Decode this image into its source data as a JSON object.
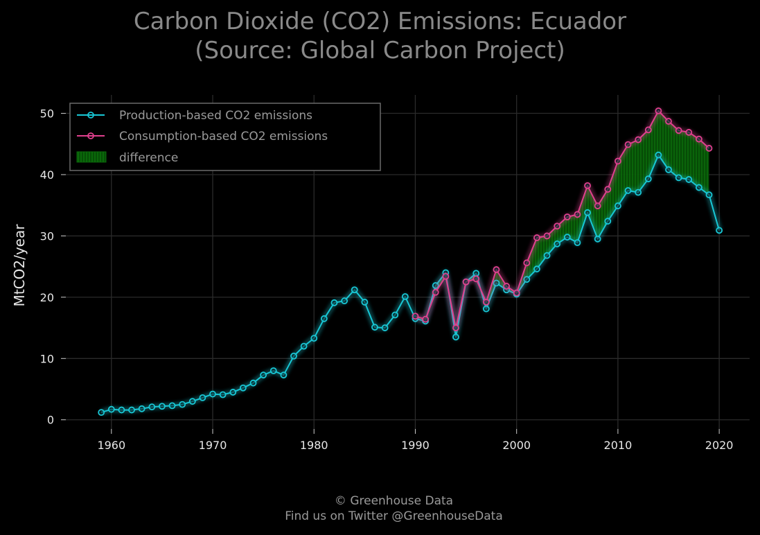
{
  "chart_data": {
    "type": "line",
    "title_line1": "Carbon Dioxide (CO2) Emissions: Ecuador",
    "title_line2": "(Source: Global Carbon Project)",
    "xlabel": "",
    "ylabel": "MtCO2/year",
    "xlim": [
      1955.5,
      2023.0
    ],
    "ylim": [
      -1.5,
      53.0
    ],
    "x_ticks": [
      1960,
      1970,
      1980,
      1990,
      2000,
      2010,
      2020
    ],
    "y_ticks": [
      0,
      10,
      20,
      30,
      40,
      50
    ],
    "grid": true,
    "legend_position": "top-left",
    "legend": [
      {
        "label": "Production-based CO2 emissions",
        "color": "#18c8d6"
      },
      {
        "label": "Consumption-based CO2 emissions",
        "color": "#e0408e"
      },
      {
        "label": "difference",
        "color": "#0a6a0a"
      }
    ],
    "series": [
      {
        "name": "Production-based CO2 emissions",
        "color": "#18c8d6",
        "x": [
          1959,
          1960,
          1961,
          1962,
          1963,
          1964,
          1965,
          1966,
          1967,
          1968,
          1969,
          1970,
          1971,
          1972,
          1973,
          1974,
          1975,
          1976,
          1977,
          1978,
          1979,
          1980,
          1981,
          1982,
          1983,
          1984,
          1985,
          1986,
          1987,
          1988,
          1989,
          1990,
          1991,
          1992,
          1993,
          1994,
          1995,
          1996,
          1997,
          1998,
          1999,
          2000,
          2001,
          2002,
          2003,
          2004,
          2005,
          2006,
          2007,
          2008,
          2009,
          2010,
          2011,
          2012,
          2013,
          2014,
          2015,
          2016,
          2017,
          2018,
          2019,
          2020
        ],
        "y": [
          1.2,
          1.7,
          1.6,
          1.6,
          1.8,
          2.1,
          2.2,
          2.3,
          2.5,
          3.0,
          3.6,
          4.2,
          4.1,
          4.5,
          5.2,
          6.0,
          7.3,
          8.0,
          7.3,
          10.4,
          12.0,
          13.3,
          16.5,
          19.1,
          19.4,
          21.2,
          19.2,
          15.1,
          15.0,
          17.1,
          20.1,
          16.5,
          16.1,
          21.9,
          24.0,
          13.5,
          22.5,
          23.9,
          18.1,
          22.3,
          21.2,
          20.5,
          22.9,
          24.6,
          26.8,
          28.7,
          29.8,
          28.9,
          33.8,
          29.5,
          32.4,
          34.9,
          37.4,
          37.1,
          39.3,
          43.2,
          40.8,
          39.5,
          39.2,
          37.9,
          36.7,
          30.9
        ]
      },
      {
        "name": "Consumption-based CO2 emissions",
        "color": "#e0408e",
        "x": [
          1990,
          1991,
          1992,
          1993,
          1994,
          1995,
          1996,
          1997,
          1998,
          1999,
          2000,
          2001,
          2002,
          2003,
          2004,
          2005,
          2006,
          2007,
          2008,
          2009,
          2010,
          2011,
          2012,
          2013,
          2014,
          2015,
          2016,
          2017,
          2018,
          2019
        ],
        "y": [
          16.9,
          16.4,
          20.8,
          23.4,
          15.0,
          22.5,
          23.0,
          19.2,
          24.5,
          21.8,
          20.7,
          25.6,
          29.7,
          30.0,
          31.6,
          33.1,
          33.5,
          38.2,
          34.9,
          37.6,
          42.2,
          44.9,
          45.7,
          47.3,
          50.4,
          48.7,
          47.2,
          46.9,
          45.8,
          44.3
        ]
      }
    ]
  },
  "footer": {
    "line1": "© Greenhouse Data",
    "line2": "Find us on Twitter @GreenhouseData"
  }
}
